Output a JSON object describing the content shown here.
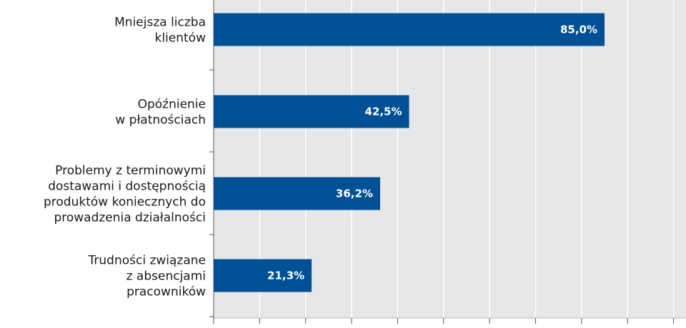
{
  "chart_data": {
    "type": "bar",
    "orientation": "horizontal",
    "categories": [
      [
        "Mniejsza liczba",
        "klientów"
      ],
      [
        "Opóźnienie",
        "w płatnościach"
      ],
      [
        "Problemy z terminowymi",
        "dostawami i dostępnością",
        "produktów koniecznych do",
        "prowadzenia działalności"
      ],
      [
        "Trudności związane",
        "z absencjami",
        "pracowników"
      ]
    ],
    "values": [
      85.0,
      42.5,
      36.2,
      21.3
    ],
    "value_labels": [
      "85,0%",
      "42,5%",
      "36,2%",
      "21,3%"
    ],
    "xlim": [
      0,
      90
    ],
    "grid": true,
    "title": "",
    "xlabel": "",
    "ylabel": "",
    "colors": {
      "bar": "#005096",
      "plot_background": "#e6e7e9",
      "gridline": "#ffffff",
      "axis": "#555555"
    }
  }
}
